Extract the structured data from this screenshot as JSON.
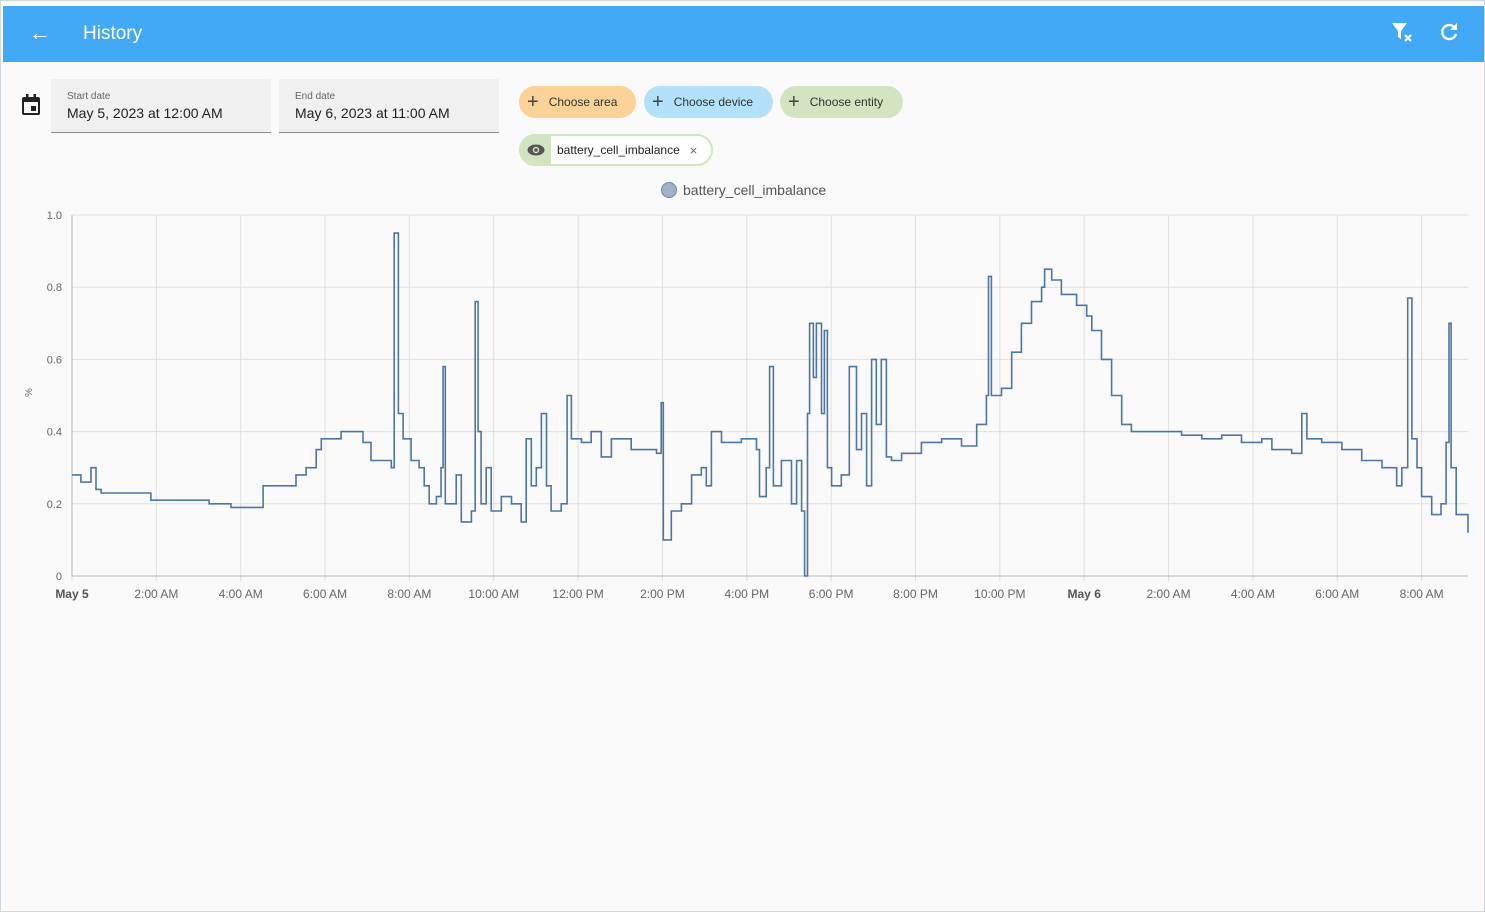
{
  "header": {
    "title": "History",
    "back_icon": "arrow-left-icon",
    "actions": [
      "filter-remove-icon",
      "refresh-icon"
    ]
  },
  "dates": {
    "start_label": "Start date",
    "start_value": "May 5, 2023 at 12:00 AM",
    "end_label": "End date",
    "end_value": "May 6, 2023 at 11:00 AM"
  },
  "targets": {
    "area": "Choose area",
    "device": "Choose device",
    "entity": "Choose entity",
    "selected_entity": "battery_cell_imbalance"
  },
  "colors": {
    "header": "#41a9f6",
    "area": "#fbd397",
    "device": "#b3e0fb",
    "entity": "#d2e5c0",
    "line": "#4e76a4"
  },
  "chart_data": {
    "type": "line",
    "legend": [
      "battery_cell_imbalance"
    ],
    "ylabel": "%",
    "ylim": [
      0,
      1.0
    ],
    "yticks": [
      "0",
      "0.2",
      "0.4",
      "0.6",
      "0.8",
      "1.0"
    ],
    "xlim_hours": [
      0,
      33.1
    ],
    "xticks": [
      {
        "h": 0,
        "label": "May 5",
        "bold": true
      },
      {
        "h": 2,
        "label": "2:00 AM"
      },
      {
        "h": 4,
        "label": "4:00 AM"
      },
      {
        "h": 6,
        "label": "6:00 AM"
      },
      {
        "h": 8,
        "label": "8:00 AM"
      },
      {
        "h": 10,
        "label": "10:00 AM"
      },
      {
        "h": 12,
        "label": "12:00 PM"
      },
      {
        "h": 14,
        "label": "2:00 PM"
      },
      {
        "h": 16,
        "label": "4:00 PM"
      },
      {
        "h": 18,
        "label": "6:00 PM"
      },
      {
        "h": 20,
        "label": "8:00 PM"
      },
      {
        "h": 22,
        "label": "10:00 PM"
      },
      {
        "h": 24,
        "label": "May 6",
        "bold": true
      },
      {
        "h": 26,
        "label": "2:00 AM"
      },
      {
        "h": 28,
        "label": "4:00 AM"
      },
      {
        "h": 30,
        "label": "6:00 AM"
      },
      {
        "h": 32,
        "label": "8:00 AM"
      }
    ],
    "series": [
      {
        "name": "battery_cell_imbalance",
        "points": [
          [
            0,
            0.28
          ],
          [
            0.21,
            0.26
          ],
          [
            0.45,
            0.3
          ],
          [
            0.57,
            0.24
          ],
          [
            0.69,
            0.23
          ],
          [
            1.52,
            0.23
          ],
          [
            1.87,
            0.21
          ],
          [
            3.25,
            0.2
          ],
          [
            3.77,
            0.19
          ],
          [
            4.44,
            0.19
          ],
          [
            4.53,
            0.25
          ],
          [
            5.31,
            0.28
          ],
          [
            5.55,
            0.3
          ],
          [
            5.79,
            0.35
          ],
          [
            5.91,
            0.38
          ],
          [
            6.38,
            0.4
          ],
          [
            6.9,
            0.37
          ],
          [
            7.09,
            0.32
          ],
          [
            7.57,
            0.3
          ],
          [
            7.64,
            0.95
          ],
          [
            7.74,
            0.45
          ],
          [
            7.85,
            0.38
          ],
          [
            8.04,
            0.32
          ],
          [
            8.23,
            0.3
          ],
          [
            8.35,
            0.25
          ],
          [
            8.47,
            0.2
          ],
          [
            8.64,
            0.22
          ],
          [
            8.75,
            0.3
          ],
          [
            8.8,
            0.58
          ],
          [
            8.85,
            0.2
          ],
          [
            9.11,
            0.28
          ],
          [
            9.23,
            0.15
          ],
          [
            9.47,
            0.18
          ],
          [
            9.56,
            0.76
          ],
          [
            9.63,
            0.4
          ],
          [
            9.7,
            0.2
          ],
          [
            9.82,
            0.3
          ],
          [
            9.94,
            0.18
          ],
          [
            10.18,
            0.22
          ],
          [
            10.42,
            0.2
          ],
          [
            10.65,
            0.15
          ],
          [
            10.77,
            0.38
          ],
          [
            10.89,
            0.25
          ],
          [
            11.01,
            0.3
          ],
          [
            11.13,
            0.45
          ],
          [
            11.25,
            0.25
          ],
          [
            11.36,
            0.18
          ],
          [
            11.6,
            0.2
          ],
          [
            11.74,
            0.5
          ],
          [
            11.84,
            0.38
          ],
          [
            12.08,
            0.37
          ],
          [
            12.31,
            0.4
          ],
          [
            12.55,
            0.33
          ],
          [
            12.79,
            0.38
          ],
          [
            13.26,
            0.35
          ],
          [
            13.86,
            0.34
          ],
          [
            13.97,
            0.48
          ],
          [
            14.02,
            0.1
          ],
          [
            14.21,
            0.18
          ],
          [
            14.45,
            0.2
          ],
          [
            14.69,
            0.28
          ],
          [
            14.92,
            0.3
          ],
          [
            15.04,
            0.25
          ],
          [
            15.16,
            0.4
          ],
          [
            15.4,
            0.37
          ],
          [
            15.87,
            0.38
          ],
          [
            16.23,
            0.35
          ],
          [
            16.3,
            0.22
          ],
          [
            16.46,
            0.3
          ],
          [
            16.54,
            0.58
          ],
          [
            16.63,
            0.25
          ],
          [
            16.82,
            0.32
          ],
          [
            17.06,
            0.2
          ],
          [
            17.18,
            0.32
          ],
          [
            17.3,
            0.18
          ],
          [
            17.37,
            0.0
          ],
          [
            17.44,
            0.45
          ],
          [
            17.49,
            0.7
          ],
          [
            17.58,
            0.55
          ],
          [
            17.65,
            0.7
          ],
          [
            17.77,
            0.45
          ],
          [
            17.84,
            0.68
          ],
          [
            17.91,
            0.3
          ],
          [
            18.01,
            0.25
          ],
          [
            18.24,
            0.28
          ],
          [
            18.43,
            0.58
          ],
          [
            18.6,
            0.35
          ],
          [
            18.72,
            0.45
          ],
          [
            18.84,
            0.25
          ],
          [
            18.96,
            0.6
          ],
          [
            19.07,
            0.42
          ],
          [
            19.19,
            0.6
          ],
          [
            19.31,
            0.33
          ],
          [
            19.43,
            0.32
          ],
          [
            19.67,
            0.34
          ],
          [
            20.14,
            0.37
          ],
          [
            20.62,
            0.38
          ],
          [
            21.09,
            0.36
          ],
          [
            21.45,
            0.42
          ],
          [
            21.68,
            0.5
          ],
          [
            21.73,
            0.83
          ],
          [
            21.8,
            0.5
          ],
          [
            22.04,
            0.52
          ],
          [
            22.28,
            0.62
          ],
          [
            22.51,
            0.7
          ],
          [
            22.75,
            0.76
          ],
          [
            22.99,
            0.8
          ],
          [
            23.06,
            0.85
          ],
          [
            23.23,
            0.82
          ],
          [
            23.46,
            0.78
          ],
          [
            23.82,
            0.75
          ],
          [
            24.06,
            0.72
          ],
          [
            24.18,
            0.68
          ],
          [
            24.41,
            0.6
          ],
          [
            24.65,
            0.5
          ],
          [
            24.89,
            0.42
          ],
          [
            25.12,
            0.4
          ],
          [
            25.6,
            0.4
          ],
          [
            26.31,
            0.39
          ],
          [
            26.79,
            0.38
          ],
          [
            27.26,
            0.39
          ],
          [
            27.73,
            0.37
          ],
          [
            28.21,
            0.38
          ],
          [
            28.45,
            0.35
          ],
          [
            28.92,
            0.34
          ],
          [
            29.16,
            0.45
          ],
          [
            29.28,
            0.38
          ],
          [
            29.63,
            0.37
          ],
          [
            30.11,
            0.35
          ],
          [
            30.58,
            0.32
          ],
          [
            31.06,
            0.3
          ],
          [
            31.41,
            0.25
          ],
          [
            31.53,
            0.3
          ],
          [
            31.67,
            0.77
          ],
          [
            31.77,
            0.38
          ],
          [
            31.89,
            0.3
          ],
          [
            32.0,
            0.22
          ],
          [
            32.24,
            0.17
          ],
          [
            32.46,
            0.2
          ],
          [
            32.58,
            0.37
          ],
          [
            32.65,
            0.7
          ],
          [
            32.7,
            0.3
          ],
          [
            32.82,
            0.17
          ],
          [
            33.1,
            0.12
          ]
        ]
      }
    ]
  }
}
